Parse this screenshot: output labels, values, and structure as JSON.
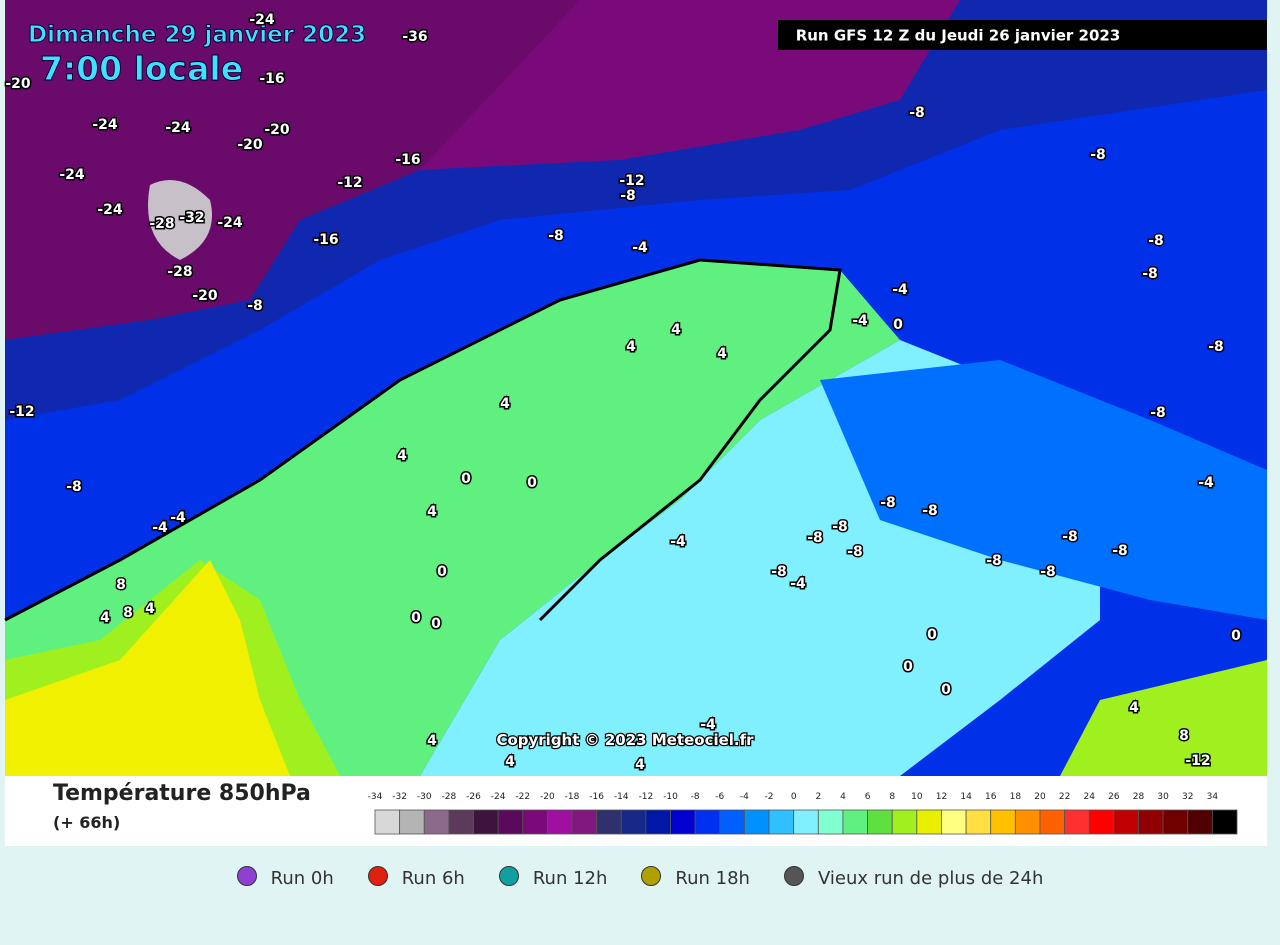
{
  "header": {
    "date": "Dimanche 29 janvier 2023",
    "time": "7:00 locale",
    "run": "Run GFS 12 Z du Jeudi 26 janvier 2023"
  },
  "map": {
    "labels": [
      "-24",
      "-36",
      "-20",
      "-16",
      "-24",
      "-24",
      "-20",
      "-20",
      "-16",
      "-12",
      "-24",
      "-24",
      "-28",
      "-32",
      "-24",
      "-28",
      "-20",
      "-8",
      "-16",
      "-12",
      "-8",
      "-8",
      "-4",
      "-8",
      "-8",
      "-8",
      "-8",
      "-8",
      "-4",
      "-4",
      "0",
      "4",
      "4",
      "4",
      "4",
      "-12",
      "-8",
      "-4",
      "-4",
      "0",
      "0",
      "4",
      "4",
      "0",
      "8",
      "8",
      "4",
      "4",
      "0",
      "0",
      "-4",
      "-8",
      "-8",
      "-8",
      "-8",
      "-8",
      "-8",
      "-4",
      "-8",
      "-8",
      "-8",
      "0",
      "0",
      "0",
      "-4",
      "4",
      "8",
      "-12",
      "4",
      "4",
      "4",
      "-4",
      "0",
      "-8",
      "-8"
    ],
    "copyright": "Copyright © 2023 Meteociel.fr"
  },
  "legend": {
    "title": "Température 850hPa",
    "subtitle": "(+ 66h)",
    "scale": {
      "ticks": [
        -34,
        -32,
        -30,
        -28,
        -26,
        -24,
        -22,
        -20,
        -18,
        -16,
        -14,
        -12,
        -10,
        -8,
        -6,
        -4,
        -2,
        0,
        2,
        4,
        6,
        8,
        10,
        12,
        14,
        16,
        18,
        20,
        22,
        24,
        26,
        28,
        30,
        32,
        34
      ],
      "colors": [
        "#d8d8d8",
        "#b4b4b4",
        "#8c6a8c",
        "#5c3a5c",
        "#3c143c",
        "#5a0a5a",
        "#7a0a7a",
        "#a010a0",
        "#801880",
        "#30306e",
        "#182888",
        "#0018a8",
        "#0000d0",
        "#0030f0",
        "#0060ff",
        "#0090ff",
        "#30c0ff",
        "#80f0ff",
        "#80ffd0",
        "#60f080",
        "#60e040",
        "#a0f020",
        "#e8f000",
        "#ffff80",
        "#ffe040",
        "#ffc000",
        "#ff9000",
        "#ff6000",
        "#ff3030",
        "#ff0000",
        "#c00000",
        "#900000",
        "#700000",
        "#500000",
        "#000000"
      ]
    }
  },
  "runs": [
    "Run 0h",
    "Run 6h",
    "Run 12h",
    "Run 18h",
    "Vieux run de plus de 24h"
  ]
}
